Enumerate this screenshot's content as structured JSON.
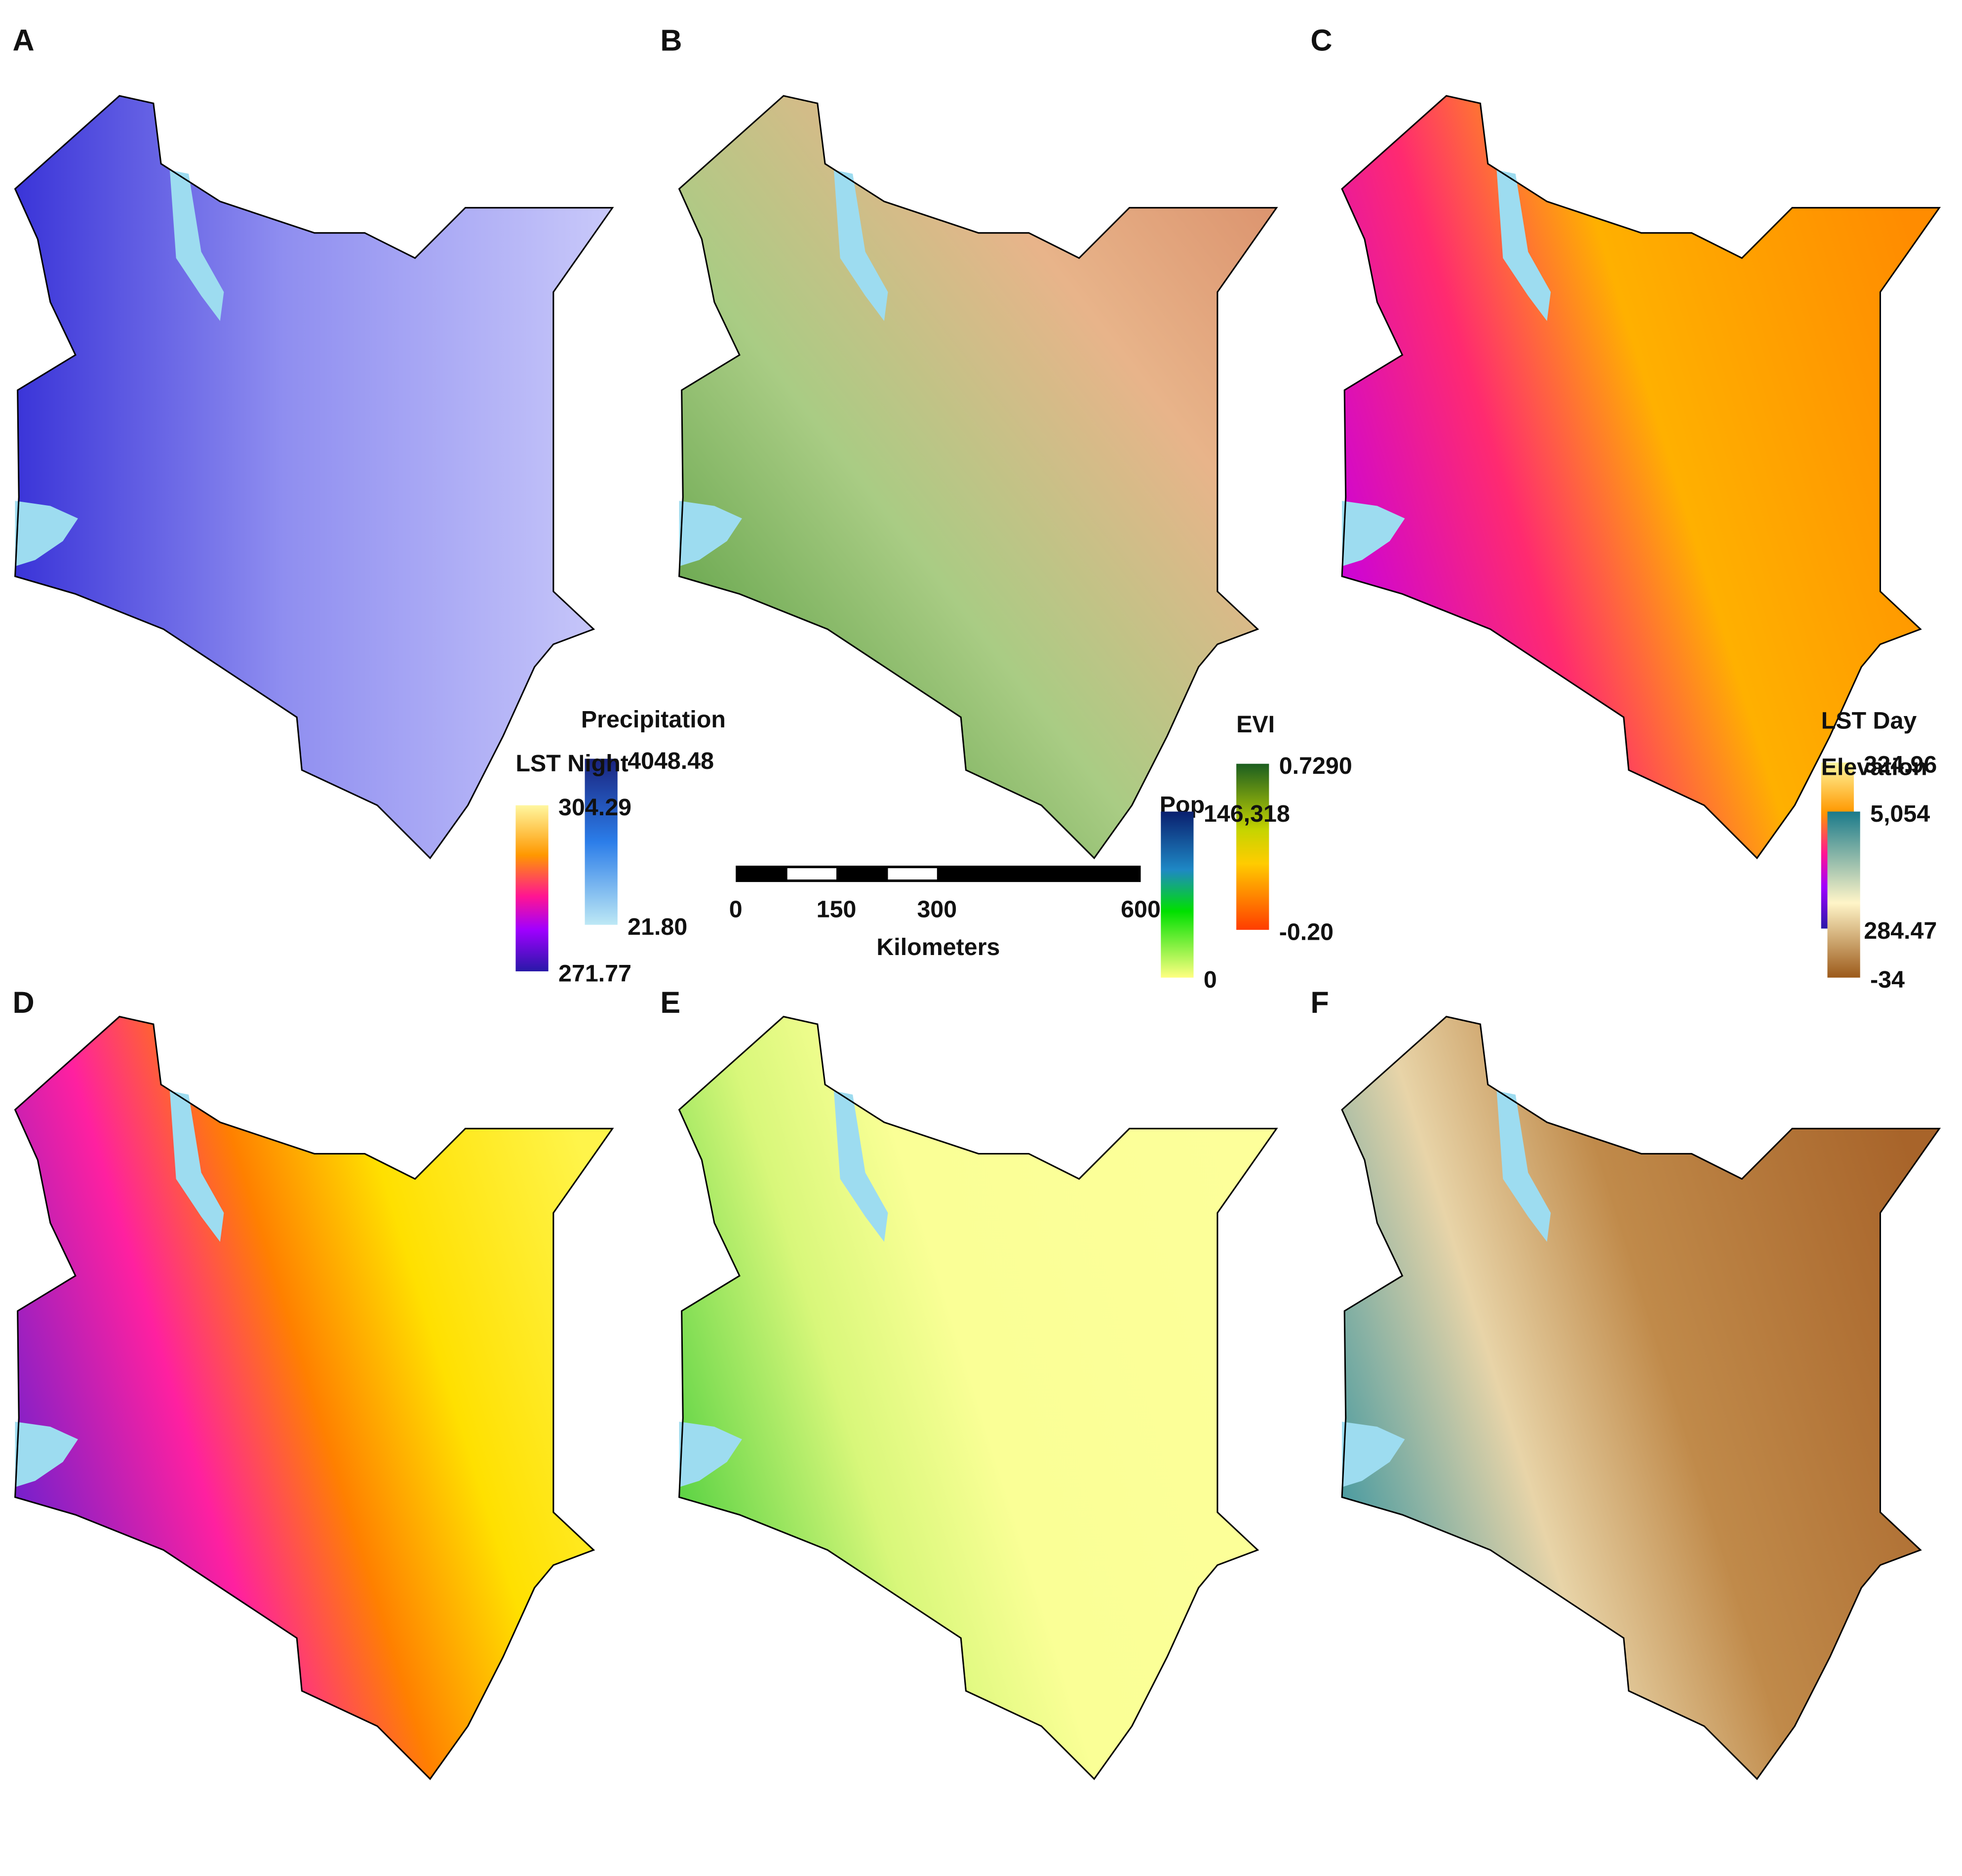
{
  "panels": [
    {
      "label": "A",
      "legend_title": "Precipitation",
      "legend_max": "4048.48",
      "legend_min": "21.80"
    },
    {
      "label": "B",
      "legend_title": "EVI",
      "legend_max": "0.7290",
      "legend_min": "-0.20"
    },
    {
      "label": "C",
      "legend_title": "LST Day",
      "legend_max": "324.96",
      "legend_min": "284.47"
    },
    {
      "label": "D",
      "legend_title": "LST Night",
      "legend_max": "304.29",
      "legend_min": "271.77"
    },
    {
      "label": "E",
      "legend_title": "Pop",
      "legend_max": "146,318",
      "legend_min": "0"
    },
    {
      "label": "F",
      "legend_title": "Elevation",
      "legend_max": "5,054",
      "legend_min": "-34"
    }
  ],
  "scale_bar": {
    "ticks": [
      "0",
      "150",
      "300",
      "600"
    ],
    "unit": "Kilometers"
  }
}
